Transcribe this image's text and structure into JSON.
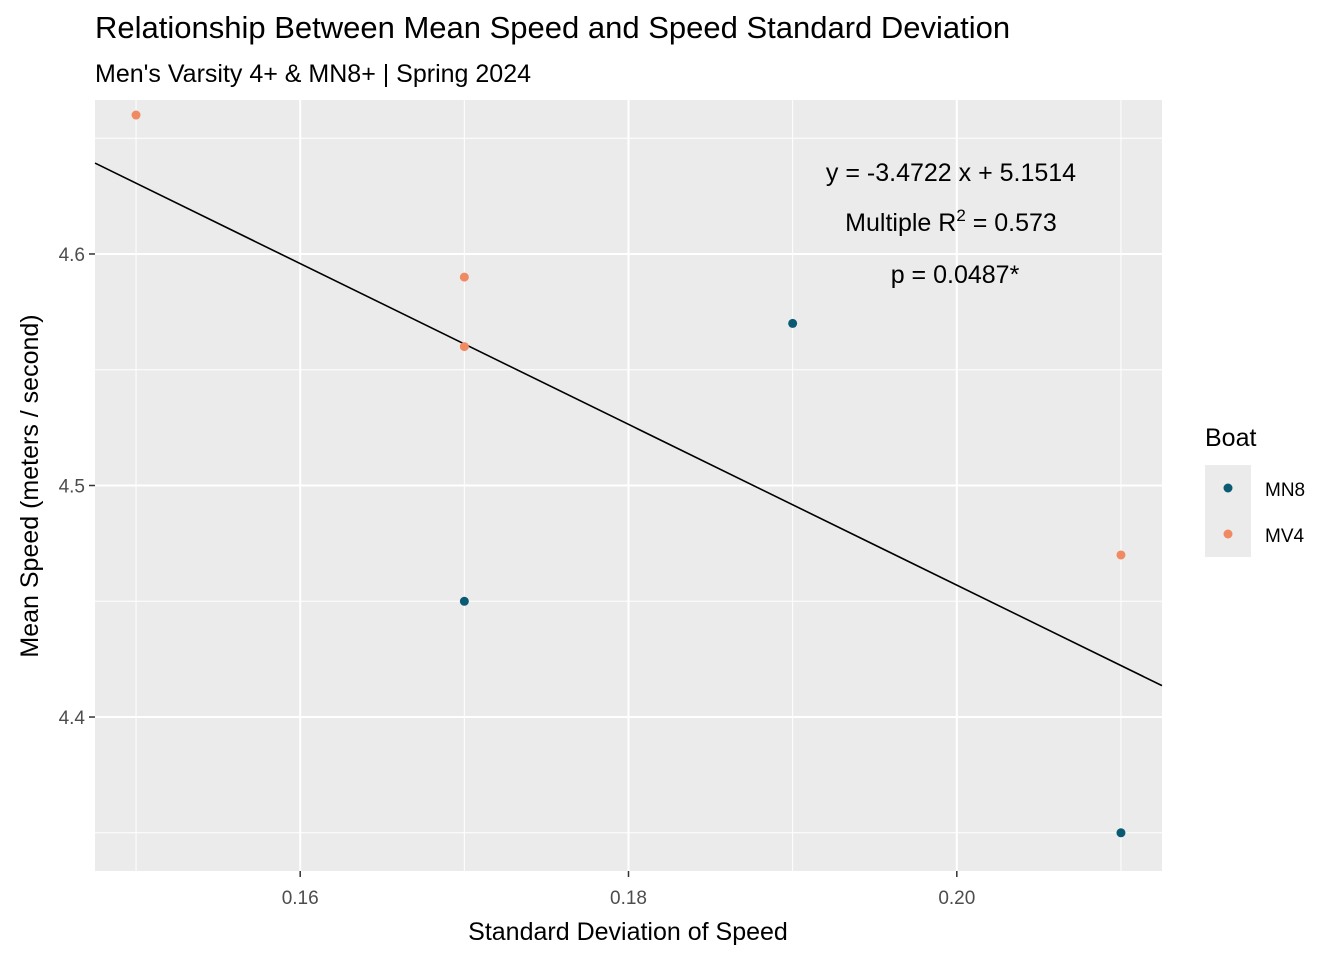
{
  "chart_data": {
    "type": "scatter",
    "title": "Relationship Between Mean Speed and Speed Standard Deviation",
    "subtitle": "Men's Varsity 4+ & MN8+ | Spring 2024",
    "xlabel": "Standard Deviation of Speed",
    "ylabel": "Mean Speed (meters / second)",
    "xlim": [
      0.1475,
      0.2125
    ],
    "ylim": [
      4.3335,
      4.6665
    ],
    "x_ticks": [
      0.16,
      0.18,
      0.2
    ],
    "x_tick_labels": [
      "0.16",
      "0.18",
      "0.20"
    ],
    "y_ticks": [
      4.4,
      4.5,
      4.6
    ],
    "y_tick_labels": [
      "4.4",
      "4.5",
      "4.6"
    ],
    "grid": true,
    "legend": {
      "title": "Boat",
      "position": "right",
      "entries": [
        {
          "label": "MN8",
          "color": "#0b5a73"
        },
        {
          "label": "MV4",
          "color": "#ef8a62"
        }
      ]
    },
    "series": [
      {
        "name": "MN8",
        "color": "#0b5a73",
        "points": [
          {
            "x": 0.17,
            "y": 4.45
          },
          {
            "x": 0.19,
            "y": 4.57
          },
          {
            "x": 0.21,
            "y": 4.35
          }
        ]
      },
      {
        "name": "MV4",
        "color": "#ef8a62",
        "points": [
          {
            "x": 0.15,
            "y": 4.66
          },
          {
            "x": 0.17,
            "y": 4.59
          },
          {
            "x": 0.17,
            "y": 4.56
          },
          {
            "x": 0.21,
            "y": 4.47
          }
        ]
      }
    ],
    "regression": {
      "slope": -3.4722,
      "intercept": 5.1514,
      "color": "#000000"
    },
    "annotations": {
      "equation": "y = -3.4722 x + 5.1514",
      "r2_prefix": "Multiple R",
      "r2_sup": "2",
      "r2_suffix": " = 0.573",
      "p_value": "p = 0.0487*"
    },
    "panel_background": "#ebebeb",
    "grid_color": "#ffffff"
  }
}
